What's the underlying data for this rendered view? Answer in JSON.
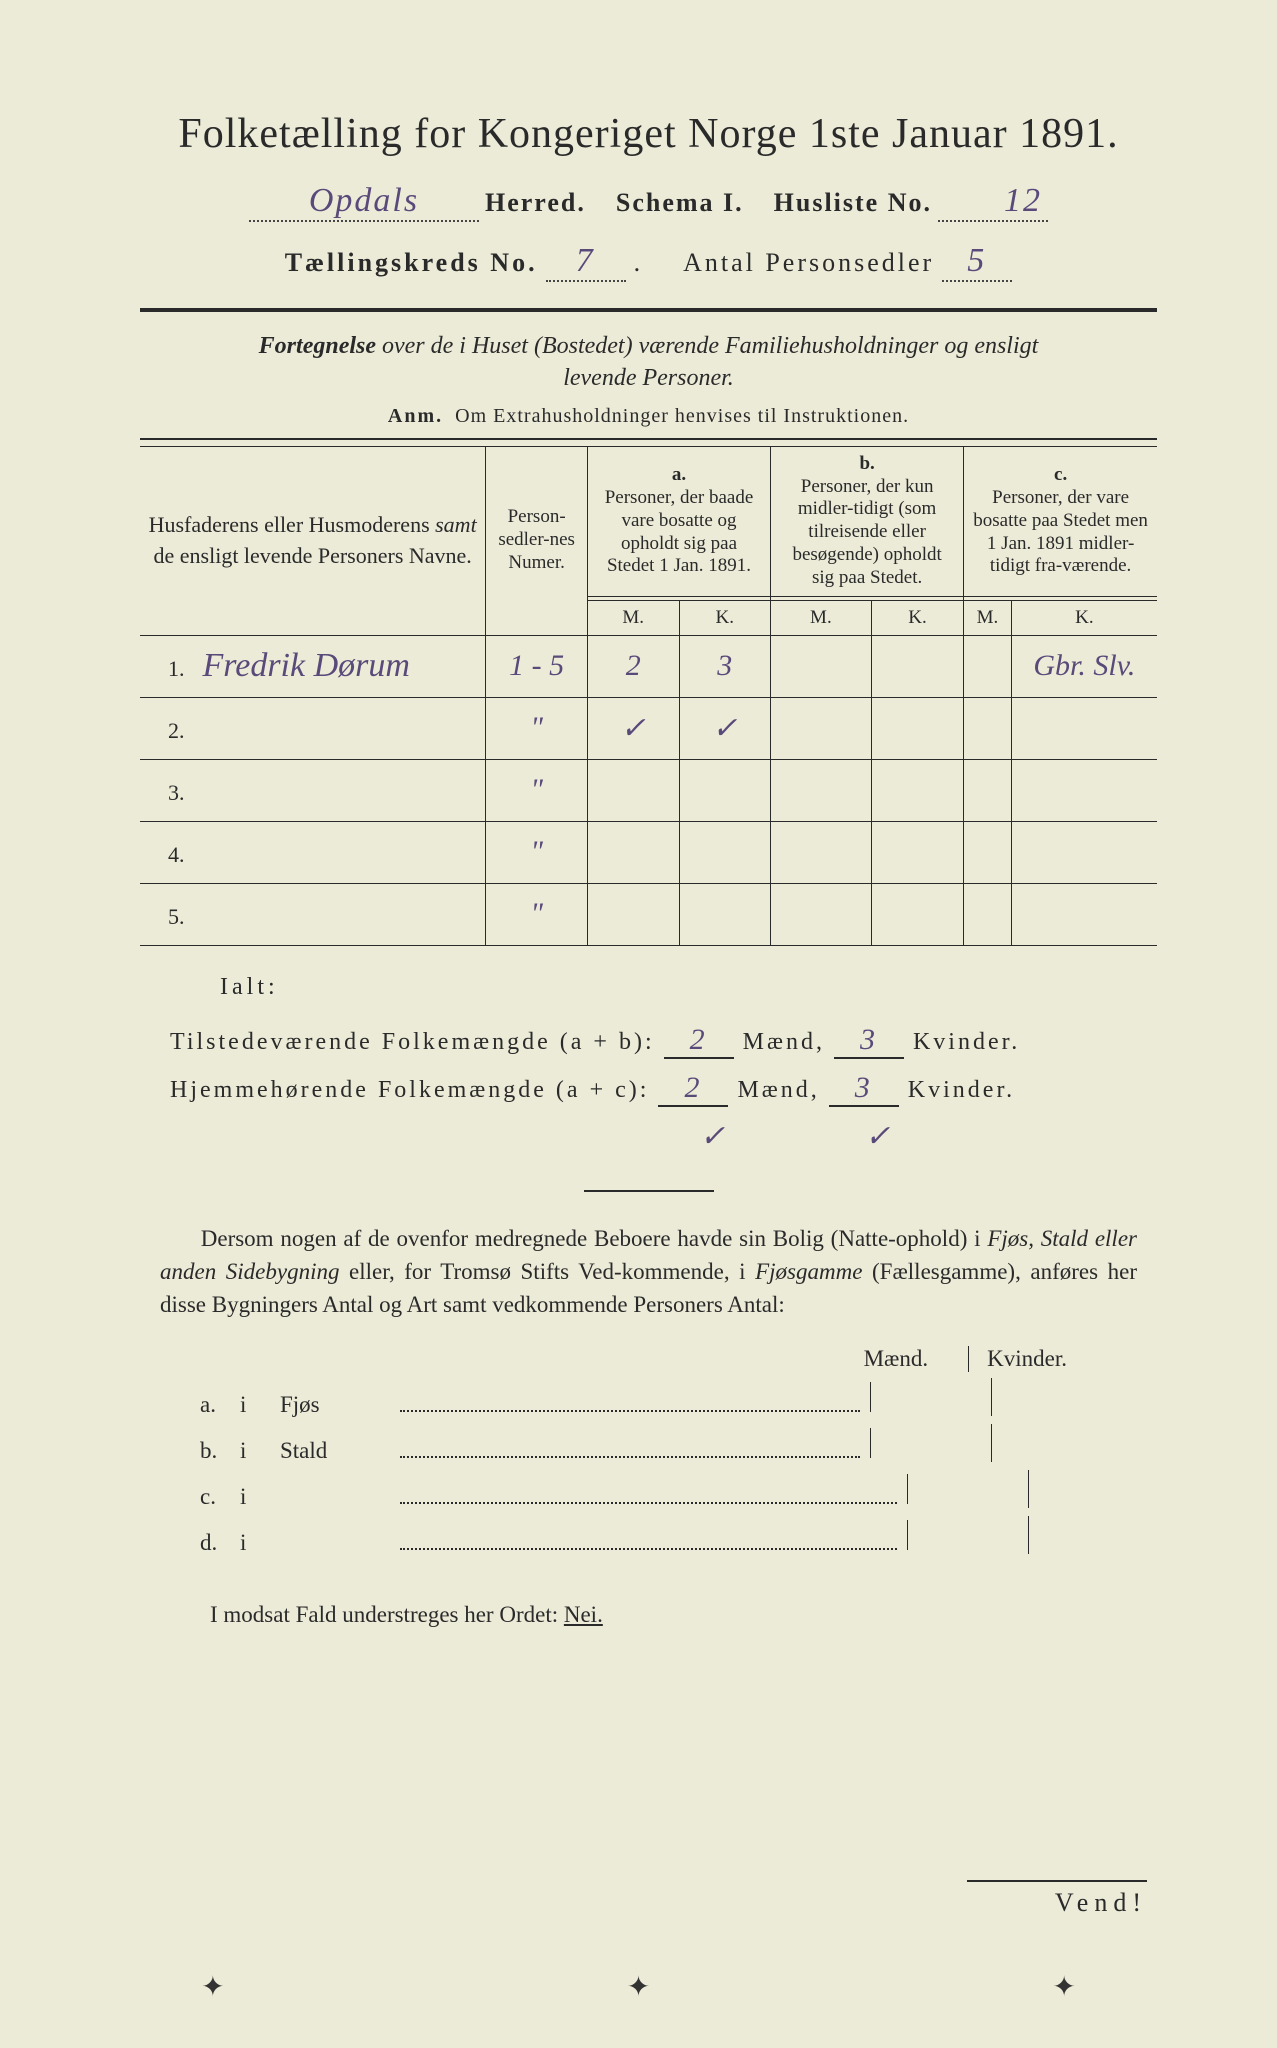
{
  "title": "Folketælling for Kongeriget Norge 1ste Januar 1891.",
  "header": {
    "herred_value": "Opdals",
    "herred_label": "Herred.",
    "schema_label": "Schema I.",
    "husliste_label": "Husliste No.",
    "husliste_value": "12",
    "kreds_label": "Tællingskreds No.",
    "kreds_value": "7",
    "antal_label": "Antal Personsedler",
    "antal_value": "5"
  },
  "intro": {
    "line": "Fortegnelse over de i Huset (Bostedet) værende Familiehusholdninger og ensligt levende Personer.",
    "lead": "Fortegnelse",
    "anm_label": "Anm.",
    "anm_text": "Om Extrahusholdninger henvises til Instruktionen."
  },
  "table": {
    "col_name": "Husfaderens eller Husmoderens samt de ensligt levende Personers Navne.",
    "col_num": "Person-sedler-nes Numer.",
    "col_a_label": "a.",
    "col_a": "Personer, der baade vare bosatte og opholdt sig paa Stedet 1 Jan. 1891.",
    "col_b_label": "b.",
    "col_b": "Personer, der kun midler-tidigt (som tilreisende eller besøgende) opholdt sig paa Stedet.",
    "col_c_label": "c.",
    "col_c": "Personer, der vare bosatte paa Stedet men 1 Jan. 1891 midler-tidigt fra-værende.",
    "M": "M.",
    "K": "K.",
    "rows": [
      {
        "n": "1.",
        "name": "Fredrik Dørum",
        "num": "1 - 5",
        "aM": "2",
        "aK": "3",
        "bM": "",
        "bK": "",
        "cM": "",
        "cK": "Gbr. Slv."
      },
      {
        "n": "2.",
        "name": "",
        "num": "\"",
        "aM": "✓",
        "aK": "✓",
        "bM": "",
        "bK": "",
        "cM": "",
        "cK": ""
      },
      {
        "n": "3.",
        "name": "",
        "num": "\"",
        "aM": "",
        "aK": "",
        "bM": "",
        "bK": "",
        "cM": "",
        "cK": ""
      },
      {
        "n": "4.",
        "name": "",
        "num": "\"",
        "aM": "",
        "aK": "",
        "bM": "",
        "bK": "",
        "cM": "",
        "cK": ""
      },
      {
        "n": "5.",
        "name": "",
        "num": "\"",
        "aM": "",
        "aK": "",
        "bM": "",
        "bK": "",
        "cM": "",
        "cK": ""
      }
    ]
  },
  "ialt": "Ialt:",
  "totals": {
    "l1_label": "Tilstedeværende Folkemængde (a + b):",
    "l1_m": "2",
    "l1_mlabel": "Mænd,",
    "l1_k": "3",
    "l1_klabel": "Kvinder.",
    "l2_label": "Hjemmehørende Folkemængde (a + c):",
    "l2_m": "2",
    "l2_mlabel": "Mænd,",
    "l2_k": "3",
    "l2_klabel": "Kvinder.",
    "check_m": "✓",
    "check_k": "✓"
  },
  "para": "Dersom nogen af de ovenfor medregnede Beboere havde sin Bolig (Natte-ophold) i Fjøs, Stald eller anden Sidebygning eller, for Tromsø Stifts Ved-kommende, i Fjøsgamme (Fællesgamme), anføres her disse Bygningers Antal og Art samt vedkommende Personers Antal:",
  "mk": {
    "m": "Mænd.",
    "k": "Kvinder."
  },
  "abcd": {
    "a": {
      "lbl": "a.",
      "i": "i",
      "name": "Fjøs"
    },
    "b": {
      "lbl": "b.",
      "i": "i",
      "name": "Stald"
    },
    "c": {
      "lbl": "c.",
      "i": "i",
      "name": ""
    },
    "d": {
      "lbl": "d.",
      "i": "i",
      "name": ""
    }
  },
  "nei_pre": "I modsat Fald understreges her Ordet: ",
  "nei": "Nei.",
  "vend": "Vend!",
  "colors": {
    "paper": "#ecebd8",
    "ink": "#2a2a2a",
    "handwriting": "#5a4a7a"
  }
}
